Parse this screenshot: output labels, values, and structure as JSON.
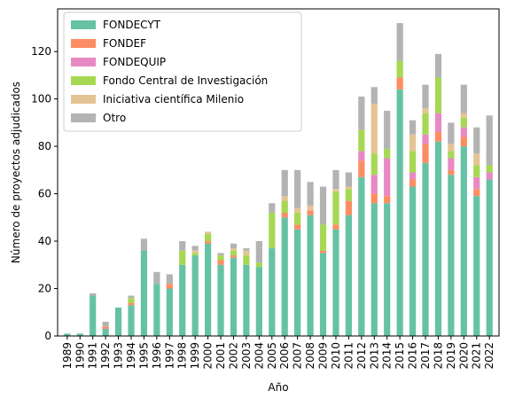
{
  "chart_data": {
    "type": "bar",
    "stacked": true,
    "title": "",
    "xlabel": "Año",
    "ylabel": "Número de proyectos adjudicados",
    "ylim": [
      0,
      138
    ],
    "yticks": [
      0,
      20,
      40,
      60,
      80,
      100,
      120
    ],
    "legend_position": "top-left",
    "grid": false,
    "categories": [
      "1989",
      "1990",
      "1991",
      "1992",
      "1993",
      "1994",
      "1995",
      "1996",
      "1997",
      "1998",
      "1999",
      "2000",
      "2001",
      "2002",
      "2003",
      "2004",
      "2005",
      "2006",
      "2007",
      "2008",
      "2009",
      "2010",
      "2011",
      "2012",
      "2013",
      "2014",
      "2015",
      "2016",
      "2017",
      "2018",
      "2019",
      "2020",
      "2021",
      "2022"
    ],
    "series": [
      {
        "name": "FONDECYT",
        "color": "#66c2a5",
        "values": [
          1,
          1,
          17,
          3,
          12,
          13,
          36,
          22,
          20,
          30,
          34,
          39,
          30,
          33,
          30,
          29,
          37,
          50,
          45,
          51,
          35,
          45,
          51,
          67,
          56,
          56,
          104,
          63,
          73,
          82,
          68,
          80,
          59,
          66
        ]
      },
      {
        "name": "FONDEF",
        "color": "#fc8d62",
        "values": [
          0,
          0,
          0,
          1,
          0,
          1,
          0,
          0,
          2,
          0,
          0,
          1,
          2,
          1,
          0,
          0,
          0,
          2,
          2,
          2,
          1,
          2,
          6,
          7,
          4,
          3,
          5,
          3,
          8,
          4,
          2,
          4,
          3,
          0
        ]
      },
      {
        "name": "FONDEQUIP",
        "color": "#e78ac3",
        "values": [
          0,
          0,
          0,
          0,
          0,
          0,
          0,
          0,
          0,
          0,
          0,
          0,
          0,
          0,
          0,
          0,
          0,
          0,
          0,
          0,
          0,
          0,
          0,
          4,
          8,
          16,
          0,
          3,
          4,
          8,
          5,
          4,
          5,
          3
        ]
      },
      {
        "name": "Fondo Central de Investigación",
        "color": "#a6d854",
        "values": [
          0,
          0,
          0,
          0,
          0,
          2,
          0,
          0,
          0,
          6,
          1,
          3,
          2,
          2,
          4,
          2,
          15,
          5,
          5,
          0,
          11,
          14,
          5,
          9,
          9,
          4,
          7,
          9,
          9,
          15,
          3,
          4,
          5,
          3
        ]
      },
      {
        "name": "Iniciativa científica Milenio",
        "color": "#e5c494",
        "values": [
          0,
          0,
          0,
          0,
          0,
          0,
          0,
          0,
          0,
          0,
          1,
          1,
          0,
          1,
          2,
          0,
          0,
          2,
          2,
          2,
          0,
          1,
          1,
          0,
          21,
          0,
          0,
          7,
          2,
          0,
          3,
          2,
          5,
          0
        ]
      },
      {
        "name": "Otro",
        "color": "#b3b3b3",
        "values": [
          0,
          0,
          1,
          2,
          0,
          1,
          5,
          5,
          4,
          4,
          2,
          0,
          1,
          2,
          1,
          9,
          4,
          11,
          16,
          10,
          16,
          8,
          6,
          14,
          7,
          16,
          16,
          6,
          10,
          10,
          9,
          12,
          11,
          21
        ]
      }
    ]
  }
}
